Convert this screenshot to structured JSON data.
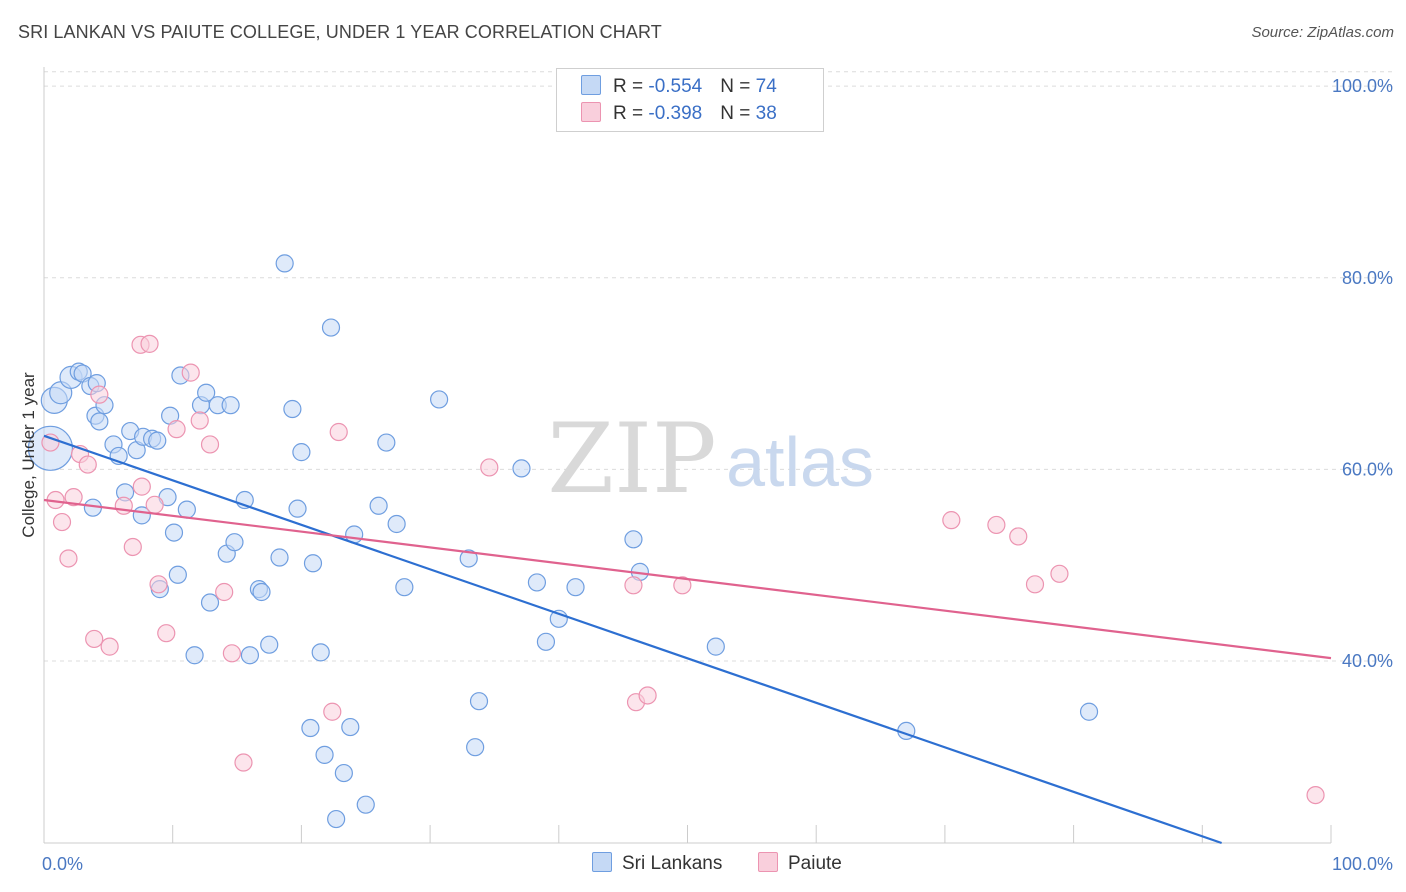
{
  "header": {
    "title": "SRI LANKAN VS PAIUTE COLLEGE, UNDER 1 YEAR CORRELATION CHART",
    "source": "Source: ZipAtlas.com"
  },
  "legend": {
    "rows": [
      {
        "r_label": "R = ",
        "r_value": "-0.554",
        "n_label": "N = ",
        "n_value": "74"
      },
      {
        "r_label": "R = ",
        "r_value": "-0.398",
        "n_label": "N = ",
        "n_value": "38"
      }
    ]
  },
  "colors": {
    "sri_fill": "#c5d9f5",
    "sri_stroke": "#6f9ee0",
    "sri_line": "#2d6fd1",
    "pai_fill": "#f9cfdc",
    "pai_stroke": "#ec94b1",
    "pai_line": "#e0628e",
    "axis_text": "#4a78c2"
  },
  "watermark": {
    "zip": "ZIP",
    "atlas": "atlas"
  },
  "chart_data": {
    "type": "scatter",
    "xlabel": "",
    "ylabel": "College, Under 1 year",
    "xlim": [
      0,
      100
    ],
    "ylim": [
      21,
      102
    ],
    "x_tick_labels": [
      {
        "value": 0,
        "label": "0.0%"
      },
      {
        "value": 100,
        "label": "100.0%"
      }
    ],
    "y_ticks": [
      {
        "value": 100,
        "label": "100.0%"
      },
      {
        "value": 80,
        "label": "80.0%"
      },
      {
        "value": 60,
        "label": "60.0%"
      },
      {
        "value": 40,
        "label": "40.0%"
      }
    ],
    "series": [
      {
        "name": "Sri Lankans",
        "trend": {
          "x0": 0,
          "y0": 63.5,
          "x1": 91.5,
          "y1": 21
        },
        "points": [
          [
            0.5,
            62.2
          ],
          [
            0.8,
            67.2
          ],
          [
            1.3,
            68
          ],
          [
            2.1,
            69.6
          ],
          [
            2.7,
            70.2
          ],
          [
            3,
            70
          ],
          [
            3.6,
            68.7
          ],
          [
            4.1,
            69
          ],
          [
            4,
            65.6
          ],
          [
            4.3,
            65
          ],
          [
            4.7,
            66.7
          ],
          [
            5.4,
            62.6
          ],
          [
            5.8,
            61.4
          ],
          [
            6.3,
            57.6
          ],
          [
            6.7,
            64
          ],
          [
            7.2,
            62
          ],
          [
            7.7,
            63.4
          ],
          [
            8.4,
            63.2
          ],
          [
            8.8,
            63
          ],
          [
            9,
            47.5
          ],
          [
            9.6,
            57.1
          ],
          [
            9.8,
            65.6
          ],
          [
            10.1,
            53.4
          ],
          [
            10.4,
            49
          ],
          [
            10.6,
            69.8
          ],
          [
            11.1,
            55.8
          ],
          [
            11.7,
            40.6
          ],
          [
            12.2,
            66.7
          ],
          [
            12.6,
            68
          ],
          [
            12.9,
            46.1
          ],
          [
            13.5,
            66.7
          ],
          [
            14.2,
            51.2
          ],
          [
            14.5,
            66.7
          ],
          [
            14.8,
            52.4
          ],
          [
            15.6,
            56.8
          ],
          [
            16,
            40.6
          ],
          [
            16.7,
            47.5
          ],
          [
            16.9,
            47.2
          ],
          [
            17.5,
            41.7
          ],
          [
            18.3,
            50.8
          ],
          [
            18.7,
            81.5
          ],
          [
            19.3,
            66.3
          ],
          [
            19.7,
            55.9
          ],
          [
            20,
            61.8
          ],
          [
            20.7,
            33
          ],
          [
            20.9,
            50.2
          ],
          [
            21.5,
            40.9
          ],
          [
            21.8,
            30.2
          ],
          [
            22.3,
            74.8
          ],
          [
            22.7,
            23.5
          ],
          [
            23.3,
            28.3
          ],
          [
            23.8,
            33.1
          ],
          [
            24.1,
            53.2
          ],
          [
            25,
            25
          ],
          [
            26,
            56.2
          ],
          [
            26.6,
            62.8
          ],
          [
            27.4,
            54.3
          ],
          [
            28,
            47.7
          ],
          [
            30.7,
            67.3
          ],
          [
            33,
            50.7
          ],
          [
            33.5,
            31
          ],
          [
            33.8,
            35.8
          ],
          [
            37.1,
            60.1
          ],
          [
            38.3,
            48.2
          ],
          [
            39,
            42
          ],
          [
            40,
            44.4
          ],
          [
            41.3,
            47.7
          ],
          [
            45.8,
            52.7
          ],
          [
            46.3,
            49.3
          ],
          [
            52.2,
            41.5
          ],
          [
            67,
            32.7
          ],
          [
            81.2,
            34.7
          ],
          [
            3.8,
            56
          ],
          [
            7.6,
            55.2
          ]
        ]
      },
      {
        "name": "Paiute",
        "trend": {
          "x0": 0,
          "y0": 56.8,
          "x1": 100,
          "y1": 40.3
        },
        "points": [
          [
            0.5,
            62.8
          ],
          [
            0.9,
            56.8
          ],
          [
            1.4,
            54.5
          ],
          [
            1.9,
            50.7
          ],
          [
            2.3,
            57.1
          ],
          [
            2.8,
            61.6
          ],
          [
            3.4,
            60.5
          ],
          [
            3.9,
            42.3
          ],
          [
            4.3,
            67.8
          ],
          [
            5.1,
            41.5
          ],
          [
            6.2,
            56.2
          ],
          [
            6.9,
            51.9
          ],
          [
            7.5,
            73
          ],
          [
            7.6,
            58.2
          ],
          [
            8.2,
            73.1
          ],
          [
            8.6,
            56.3
          ],
          [
            8.9,
            48
          ],
          [
            9.5,
            42.9
          ],
          [
            10.3,
            64.2
          ],
          [
            11.4,
            70.1
          ],
          [
            12.1,
            65.1
          ],
          [
            12.9,
            62.6
          ],
          [
            14,
            47.2
          ],
          [
            14.6,
            40.8
          ],
          [
            15.5,
            29.4
          ],
          [
            22.4,
            34.7
          ],
          [
            22.9,
            63.9
          ],
          [
            34.6,
            60.2
          ],
          [
            45.8,
            47.9
          ],
          [
            46,
            35.7
          ],
          [
            46.9,
            36.4
          ],
          [
            49.6,
            47.9
          ],
          [
            70.5,
            54.7
          ],
          [
            74,
            54.2
          ],
          [
            75.7,
            53
          ],
          [
            77,
            48
          ],
          [
            78.9,
            49.1
          ],
          [
            98.8,
            26
          ]
        ]
      }
    ]
  },
  "bottom_legend": {
    "items": [
      "Sri Lankans",
      "Paiute"
    ]
  }
}
